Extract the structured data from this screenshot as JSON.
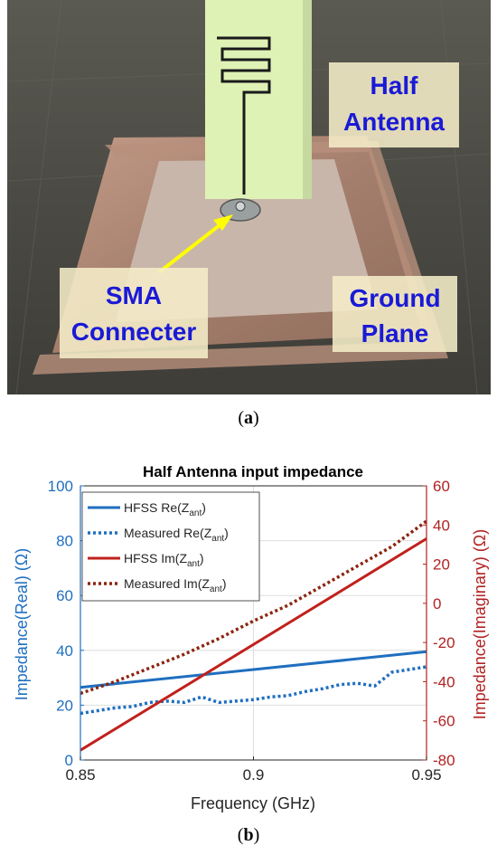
{
  "figure_a": {
    "caption_prefix": "(",
    "caption_letter": "a",
    "caption_suffix": ")",
    "labels": {
      "half_antenna_line1": "Half",
      "half_antenna_line2": "Antenna",
      "sma_line1": "SMA",
      "sma_line2": "Connecter",
      "ground_line1": "Ground",
      "ground_line2": "Plane"
    },
    "colors": {
      "label_text": "#1a1ad6",
      "label_box": "#f5edc8",
      "arrow": "#ffff00",
      "substrate": "#dff2b5",
      "copper": "#b08a78"
    }
  },
  "figure_b": {
    "caption_prefix": "(",
    "caption_letter": "b",
    "caption_suffix": ")"
  },
  "chart_data": {
    "type": "line",
    "title": "Half Antenna input impedance",
    "xlabel": "Frequency (GHz)",
    "ylabel_left": "Impedance(Real) (Ω)",
    "ylabel_right": "Impedance(Imaginary) (Ω)",
    "xlim": [
      0.85,
      0.95
    ],
    "ylim_left": [
      0,
      100
    ],
    "ylim_right": [
      -80,
      60
    ],
    "x_ticks": [
      "0.85",
      "0.9",
      "0.95"
    ],
    "y_left_ticks": [
      "0",
      "20",
      "40",
      "60",
      "80",
      "100"
    ],
    "y_right_ticks": [
      "-80",
      "-60",
      "-40",
      "-20",
      "0",
      "20",
      "40",
      "60"
    ],
    "grid": true,
    "legend_position": "top-left",
    "colors": {
      "left_axis": "#1f6fc0",
      "right_axis": "#b22222"
    },
    "series": [
      {
        "name": "HFSS Re(Zant)",
        "legend_main": "HFSS Re(Z",
        "legend_sub": "ant",
        "legend_end": ")",
        "axis": "left",
        "color": "#1f6fc0",
        "dash": "solid",
        "x": [
          0.85,
          0.95
        ],
        "y": [
          26.5,
          39.5
        ]
      },
      {
        "name": "Measured Re(Zant)",
        "legend_main": "Measured  Re(Z",
        "legend_sub": "ant",
        "legend_end": ")",
        "axis": "left",
        "color": "#1f6fc0",
        "dash": "dotted",
        "x": [
          0.85,
          0.855,
          0.86,
          0.865,
          0.87,
          0.875,
          0.88,
          0.885,
          0.89,
          0.895,
          0.9,
          0.905,
          0.91,
          0.915,
          0.92,
          0.925,
          0.93,
          0.935,
          0.94,
          0.945,
          0.95
        ],
        "y": [
          17,
          18,
          19,
          19.5,
          21,
          21.5,
          21,
          23,
          21,
          21.5,
          22,
          23,
          23.5,
          25,
          26,
          27.5,
          28,
          27,
          32,
          33,
          34
        ]
      },
      {
        "name": "HFSS Im(Zant)",
        "legend_main": "HFSS Im(Z",
        "legend_sub": "ant",
        "legend_end": ")",
        "axis": "right",
        "color": "#c0211c",
        "dash": "solid",
        "x": [
          0.85,
          0.95
        ],
        "y": [
          -75,
          33
        ]
      },
      {
        "name": "Measured Im(Zant)",
        "legend_main": "Measured Im(Z",
        "legend_sub": "ant",
        "legend_end": ")",
        "axis": "right",
        "color": "#8b2510",
        "dash": "dotted",
        "x": [
          0.85,
          0.86,
          0.87,
          0.88,
          0.89,
          0.9,
          0.91,
          0.92,
          0.93,
          0.94,
          0.95
        ],
        "y": [
          -46,
          -40,
          -33,
          -26,
          -18,
          -9,
          -1,
          9,
          19,
          29,
          42
        ]
      }
    ]
  }
}
